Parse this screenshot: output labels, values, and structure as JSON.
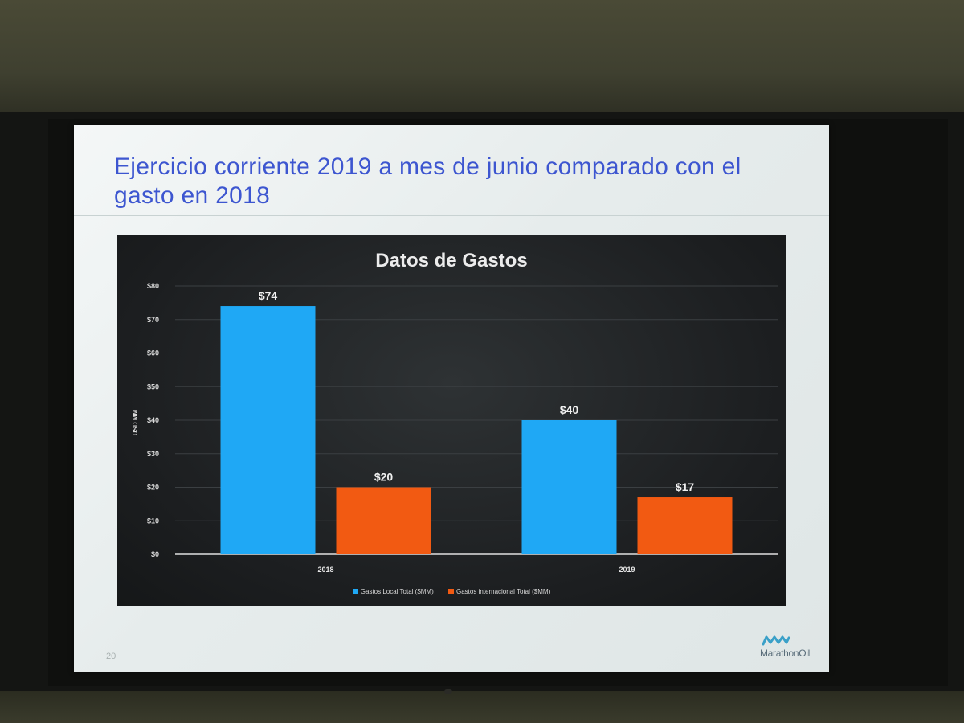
{
  "slide": {
    "title": "Ejercicio corriente 2019 a mes de junio comparado con el gasto en 2018",
    "page_number": "20",
    "logo_text": "MarathonOil"
  },
  "colors": {
    "local": "#1fa8f5",
    "internacional": "#f25a12",
    "title": "#3d56d0"
  },
  "chart_data": {
    "type": "bar",
    "title": "Datos de Gastos",
    "ylabel": "USD MM",
    "xlabel": "",
    "categories": [
      "2018",
      "2019"
    ],
    "series": [
      {
        "name": "Gastos Local Total ($MM)",
        "values": [
          74,
          40
        ],
        "labels": [
          "$74",
          "$40"
        ],
        "color": "#1fa8f5"
      },
      {
        "name": "Gastos internacional Total ($MM)",
        "values": [
          20,
          17
        ],
        "labels": [
          "$20",
          "$17"
        ],
        "color": "#f25a12"
      }
    ],
    "ylim": [
      0,
      80
    ],
    "yticks": [
      0,
      10,
      20,
      30,
      40,
      50,
      60,
      70,
      80
    ],
    "ytick_labels": [
      "$0",
      "$10",
      "$20",
      "$30",
      "$40",
      "$50",
      "$60",
      "$70",
      "$80"
    ],
    "grid": true,
    "legend": "bottom"
  }
}
